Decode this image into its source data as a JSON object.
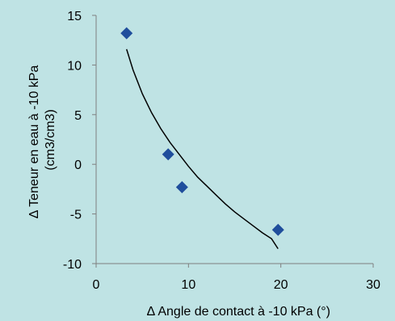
{
  "chart_data": {
    "type": "scatter",
    "xlabel": "∆ Angle de contact à -10 kPa (°)",
    "ylabel_lines": [
      "∆ Teneur en eau à -10 kPa",
      "(cm3/cm3)"
    ],
    "xlim": [
      0,
      30
    ],
    "ylim": [
      -10,
      15
    ],
    "xticks": [
      "0",
      "10",
      "20",
      "30"
    ],
    "yticks": [
      "15",
      "10",
      "5",
      "0",
      "-5",
      "-10"
    ],
    "grid": false,
    "legend": "none",
    "series": [
      {
        "marker": "diamond",
        "color": "#1f4e9c",
        "x": [
          3.3,
          7.8,
          9.3,
          19.7
        ],
        "y": [
          13.2,
          1.0,
          -2.3,
          -6.6
        ]
      }
    ],
    "trendline": {
      "color": "#000000",
      "x_range": [
        3.3,
        19.7
      ],
      "points": [
        [
          3.3,
          11.6
        ],
        [
          4,
          9.5
        ],
        [
          5,
          7.1
        ],
        [
          6,
          5.2
        ],
        [
          7,
          3.6
        ],
        [
          8,
          2.2
        ],
        [
          9,
          1.0
        ],
        [
          10,
          -0.2
        ],
        [
          11,
          -1.3
        ],
        [
          12,
          -2.2
        ],
        [
          13,
          -3.1
        ],
        [
          14,
          -4.0
        ],
        [
          15,
          -4.8
        ],
        [
          16,
          -5.5
        ],
        [
          17,
          -6.2
        ],
        [
          18,
          -6.9
        ],
        [
          19,
          -7.5
        ],
        [
          19.7,
          -8.5
        ]
      ]
    }
  }
}
